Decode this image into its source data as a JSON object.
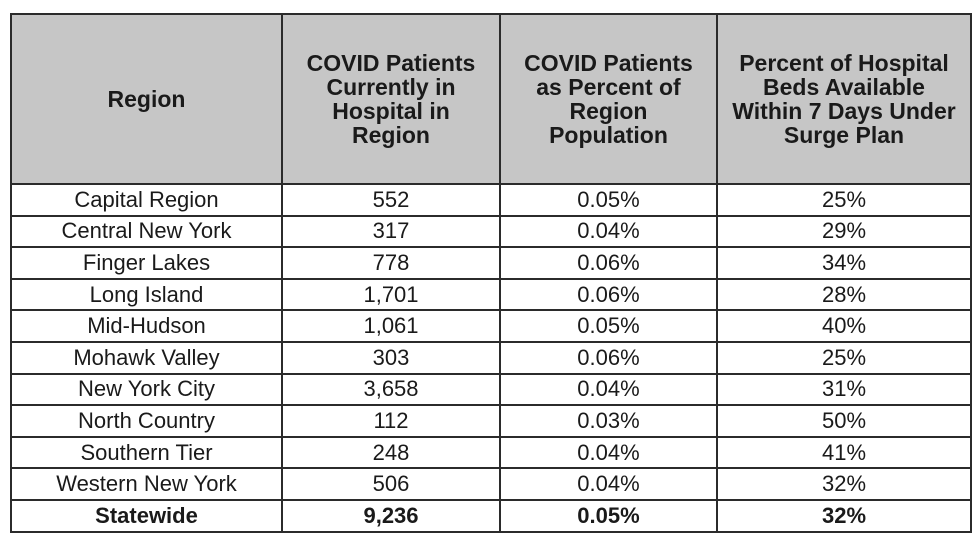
{
  "table": {
    "headers": [
      "Region",
      "COVID Patients\nCurrently in\nHospital in\nRegion",
      "COVID Patients\nas Percent of\nRegion\nPopulation",
      "Percent of Hospital\nBeds Available\nWithin 7 Days Under\nSurge Plan"
    ],
    "rows": [
      {
        "region": "Capital Region",
        "patients": "552",
        "percent_population": "0.05%",
        "beds_available": "25%"
      },
      {
        "region": "Central New York",
        "patients": "317",
        "percent_population": "0.04%",
        "beds_available": "29%"
      },
      {
        "region": "Finger Lakes",
        "patients": "778",
        "percent_population": "0.06%",
        "beds_available": "34%"
      },
      {
        "region": "Long Island",
        "patients": "1,701",
        "percent_population": "0.06%",
        "beds_available": "28%"
      },
      {
        "region": "Mid-Hudson",
        "patients": "1,061",
        "percent_population": "0.05%",
        "beds_available": "40%"
      },
      {
        "region": "Mohawk Valley",
        "patients": "303",
        "percent_population": "0.06%",
        "beds_available": "25%"
      },
      {
        "region": "New York City",
        "patients": "3,658",
        "percent_population": "0.04%",
        "beds_available": "31%"
      },
      {
        "region": "North Country",
        "patients": "112",
        "percent_population": "0.03%",
        "beds_available": "50%"
      },
      {
        "region": "Southern Tier",
        "patients": "248",
        "percent_population": "0.04%",
        "beds_available": "41%"
      },
      {
        "region": "Western New York",
        "patients": "506",
        "percent_population": "0.04%",
        "beds_available": "32%"
      }
    ],
    "total": {
      "region": "Statewide",
      "patients": "9,236",
      "percent_population": "0.05%",
      "beds_available": "32%"
    }
  }
}
